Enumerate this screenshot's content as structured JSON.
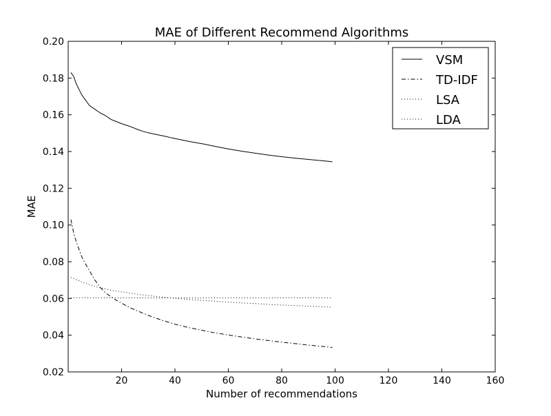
{
  "chart_data": {
    "type": "line",
    "title": "MAE of Different Recommend Algorithms",
    "xlabel": "Number of recommendations",
    "ylabel": "MAE",
    "xlim": [
      0,
      160
    ],
    "ylim": [
      0.02,
      0.2
    ],
    "xticks": [
      "20",
      "40",
      "60",
      "80",
      "100",
      "120",
      "140",
      "160"
    ],
    "yticks": [
      "0.02",
      "0.04",
      "0.06",
      "0.08",
      "0.10",
      "0.12",
      "0.14",
      "0.16",
      "0.18",
      "0.20"
    ],
    "grid": false,
    "legend_position": "top-right",
    "series": [
      {
        "name": "VSM",
        "style": "solid",
        "color": "#000000",
        "x": [
          1,
          2,
          3,
          4,
          5,
          6,
          8,
          10,
          12,
          14,
          16,
          18,
          20,
          22,
          24,
          26,
          28,
          30,
          33,
          36,
          39,
          42,
          45,
          48,
          51,
          55,
          60,
          65,
          70,
          75,
          80,
          85,
          90,
          95,
          99
        ],
        "y": [
          0.183,
          0.181,
          0.177,
          0.174,
          0.171,
          0.169,
          0.165,
          0.163,
          0.161,
          0.1595,
          0.1575,
          0.1563,
          0.1552,
          0.1542,
          0.1532,
          0.152,
          0.151,
          0.1502,
          0.1493,
          0.1484,
          0.1474,
          0.1465,
          0.1456,
          0.1448,
          0.144,
          0.1428,
          0.1414,
          0.1402,
          0.1391,
          0.1381,
          0.1372,
          0.1364,
          0.1357,
          0.135,
          0.1344
        ]
      },
      {
        "name": "TD-IDF",
        "style": "dashdot",
        "color": "#000000",
        "x": [
          1,
          2,
          3,
          4,
          5,
          6,
          8,
          10,
          12,
          14,
          16,
          18,
          20,
          22,
          25,
          30,
          35,
          40,
          45,
          50,
          55,
          60,
          65,
          70,
          75,
          80,
          85,
          90,
          95,
          99
        ],
        "y": [
          0.103,
          0.096,
          0.091,
          0.087,
          0.083,
          0.08,
          0.075,
          0.07,
          0.066,
          0.063,
          0.061,
          0.059,
          0.0575,
          0.0558,
          0.0538,
          0.0508,
          0.0482,
          0.046,
          0.0442,
          0.0427,
          0.0413,
          0.0401,
          0.039,
          0.038,
          0.0371,
          0.0362,
          0.0354,
          0.0346,
          0.0339,
          0.0333
        ]
      },
      {
        "name": "LSA",
        "style": "dotted",
        "color": "#000000",
        "x": [
          1,
          3,
          5,
          8,
          10,
          13,
          16,
          20,
          25,
          30,
          35,
          40,
          45,
          50,
          55,
          60,
          65,
          70,
          75,
          80,
          85,
          90,
          95,
          99
        ],
        "y": [
          0.0715,
          0.0703,
          0.069,
          0.0675,
          0.0665,
          0.0655,
          0.0645,
          0.0636,
          0.0625,
          0.0616,
          0.0608,
          0.0601,
          0.0595,
          0.059,
          0.0585,
          0.058,
          0.0576,
          0.0572,
          0.0568,
          0.0564,
          0.0561,
          0.0558,
          0.0555,
          0.0552
        ]
      },
      {
        "name": "LDA",
        "style": "dotted",
        "color": "#000000",
        "x": [
          1,
          10,
          20,
          30,
          40,
          50,
          60,
          70,
          80,
          90,
          99
        ],
        "y": [
          0.0603,
          0.0603,
          0.0603,
          0.0603,
          0.0603,
          0.0603,
          0.0603,
          0.0603,
          0.0603,
          0.0603,
          0.0603
        ]
      }
    ]
  }
}
